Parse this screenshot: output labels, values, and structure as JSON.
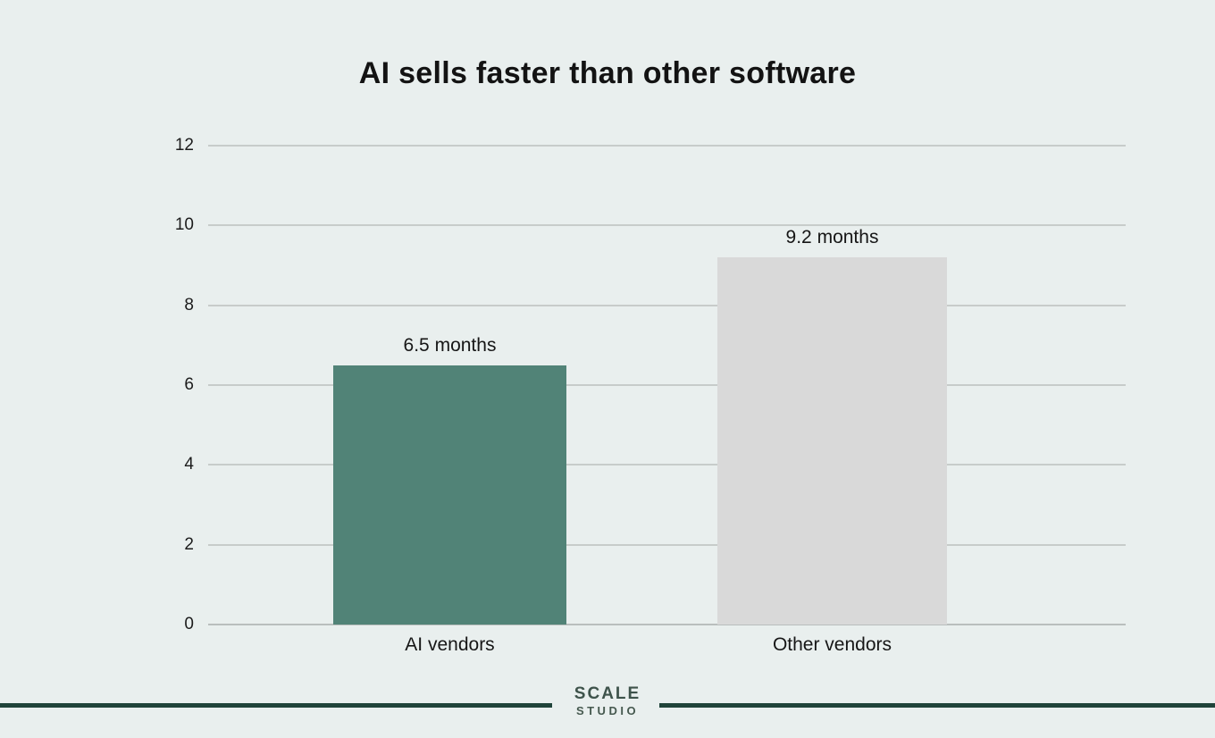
{
  "title": "AI sells faster than other software",
  "chart_data": {
    "type": "bar",
    "title": "AI sells faster than other software",
    "categories": [
      "AI vendors",
      "Other vendors"
    ],
    "values": [
      6.5,
      9.2
    ],
    "value_labels": [
      "6.5 months",
      "9.2 months"
    ],
    "unit": "months",
    "xlabel": "",
    "ylabel": "",
    "ylim": [
      0,
      12
    ],
    "yticks": [
      12,
      10,
      8,
      6,
      4,
      2,
      0
    ],
    "grid": true,
    "legend": "none",
    "bar_colors": [
      "#518377",
      "#d9d9d9"
    ]
  },
  "footer": {
    "brand_line1": "SCALE",
    "brand_line2": "STUDIO"
  },
  "colors": {
    "background": "#e9efee",
    "bar_ai_vendors": "#518377",
    "bar_other_vendors": "#d9d9d9",
    "gridline": "#c7ccca",
    "footer_rule": "#20443a",
    "title_text": "#131313",
    "brand_text": "#3e534b"
  }
}
